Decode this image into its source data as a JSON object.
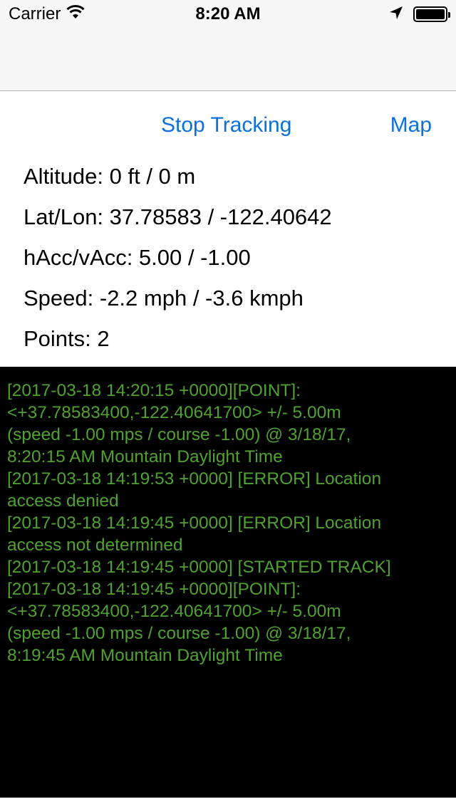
{
  "status_bar": {
    "carrier": "Carrier",
    "time": "8:20 AM",
    "icons": [
      "wifi-icon",
      "location-arrow-icon",
      "battery-icon"
    ]
  },
  "actions": {
    "stop_tracking": "Stop Tracking",
    "map": "Map"
  },
  "info": {
    "altitude": "Altitude: 0 ft / 0 m",
    "lat_lon": "Lat/Lon: 37.78583 / -122.40642",
    "accuracy": "hAcc/vAcc: 5.00 / -1.00",
    "speed": "Speed: -2.2 mph / -3.6 kmph",
    "points": "Points: 2"
  },
  "log": {
    "lines": [
      "[2017-03-18 14:20:15 +0000][POINT]:",
      "<+37.78583400,-122.40641700> +/- 5.00m",
      "(speed -1.00 mps / course -1.00) @ 3/18/17,",
      "8:20:15 AM Mountain Daylight Time",
      "[2017-03-18 14:19:53 +0000] [ERROR] Location",
      "access denied",
      "[2017-03-18 14:19:45 +0000] [ERROR] Location",
      "access not determined",
      "[2017-03-18 14:19:45 +0000] [STARTED TRACK]",
      "[2017-03-18 14:19:45 +0000][POINT]:",
      "<+37.78583400,-122.40641700> +/- 5.00m",
      "(speed -1.00 mps / course -1.00) @ 3/18/17,",
      "8:19:45 AM Mountain Daylight Time"
    ]
  },
  "colors": {
    "link": "#0a70e6",
    "log_text": "#4ea32c",
    "log_background": "#000000"
  }
}
